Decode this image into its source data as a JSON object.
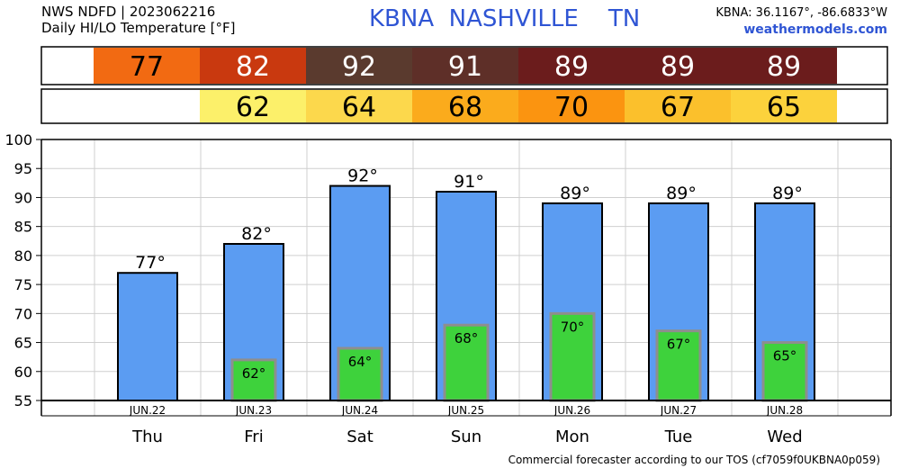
{
  "header": {
    "line1": "NWS NDFD | 2023062216",
    "line2": "Daily HI/LO Temperature [°F]",
    "station_title": "KBNA  NASHVILLE    TN",
    "coords": "KBNA: 36.1167°, -86.6833°W",
    "site": "weathermodels.com"
  },
  "footer": {
    "text": "Commercial forecaster according to our TOS (cf7059f0UKBNA0p059)"
  },
  "hi_row": [
    {
      "text": "77",
      "color": "#f26a12"
    },
    {
      "text": "82",
      "color": "#c9390f"
    },
    {
      "text": "92",
      "color": "#5a3a2e"
    },
    {
      "text": "91",
      "color": "#5e2f28"
    },
    {
      "text": "89",
      "color": "#6b1c1c"
    },
    {
      "text": "89",
      "color": "#6b1c1c"
    },
    {
      "text": "89",
      "color": "#6b1c1c"
    }
  ],
  "lo_row": [
    {
      "text": "",
      "color": "#ffffff"
    },
    {
      "text": "62",
      "color": "#fcf06a"
    },
    {
      "text": "64",
      "color": "#fcd84c"
    },
    {
      "text": "68",
      "color": "#fbab1c"
    },
    {
      "text": "70",
      "color": "#fb9410"
    },
    {
      "text": "67",
      "color": "#fbc02c"
    },
    {
      "text": "65",
      "color": "#fcd23c"
    }
  ],
  "chart_data": {
    "type": "bar",
    "categories": [
      "Thu",
      "Fri",
      "Sat",
      "Sun",
      "Mon",
      "Tue",
      "Wed"
    ],
    "dates": [
      "JUN.22",
      "JUN.23",
      "JUN.24",
      "JUN.25",
      "JUN.26",
      "JUN.27",
      "JUN.28"
    ],
    "series": [
      {
        "values": [
          77,
          82,
          92,
          91,
          89,
          89,
          89
        ],
        "color": "#5b9cf2"
      },
      {
        "values": [
          null,
          62,
          64,
          68,
          70,
          67,
          65
        ],
        "color": "#3ed23c"
      }
    ],
    "hi_labels": [
      "77°",
      "82°",
      "92°",
      "91°",
      "89°",
      "89°",
      "89°"
    ],
    "lo_labels": [
      "",
      "62°",
      "64°",
      "68°",
      "70°",
      "67°",
      "65°"
    ],
    "yticks": [
      "100",
      "95",
      "90",
      "85",
      "80",
      "75",
      "70",
      "65",
      "60",
      "55"
    ],
    "ylim": [
      55,
      100
    ],
    "grid": true
  }
}
